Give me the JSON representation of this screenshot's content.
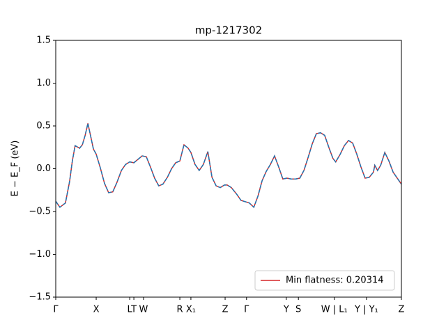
{
  "chart_data": {
    "type": "line",
    "title": "mp-1217302",
    "y_label": "E − E_F (eV)",
    "x": [
      0,
      0.012,
      0.028,
      0.04,
      0.048,
      0.056,
      0.069,
      0.077,
      0.085,
      0.093,
      0.101,
      0.109,
      0.117,
      0.129,
      0.141,
      0.153,
      0.165,
      0.177,
      0.19,
      0.202,
      0.214,
      0.226,
      0.238,
      0.25,
      0.262,
      0.274,
      0.286,
      0.298,
      0.31,
      0.323,
      0.335,
      0.347,
      0.359,
      0.371,
      0.383,
      0.391,
      0.403,
      0.415,
      0.427,
      0.44,
      0.452,
      0.464,
      0.476,
      0.488,
      0.496,
      0.508,
      0.524,
      0.536,
      0.552,
      0.56,
      0.573,
      0.585,
      0.597,
      0.609,
      0.621,
      0.633,
      0.645,
      0.657,
      0.669,
      0.681,
      0.694,
      0.706,
      0.718,
      0.73,
      0.742,
      0.754,
      0.766,
      0.778,
      0.79,
      0.802,
      0.81,
      0.823,
      0.835,
      0.847,
      0.859,
      0.871,
      0.883,
      0.895,
      0.907,
      0.919,
      0.923,
      0.931,
      0.94,
      0.952,
      0.964,
      0.976,
      0.988,
      1
    ],
    "series": [
      {
        "name": "Min flatness: 0.20314",
        "color": "#d62728",
        "linestyle": "solid",
        "values": [
          -0.38,
          -0.45,
          -0.4,
          -0.15,
          0.09,
          0.27,
          0.24,
          0.28,
          0.39,
          0.53,
          0.38,
          0.23,
          0.17,
          0.01,
          -0.17,
          -0.28,
          -0.27,
          -0.16,
          -0.02,
          0.05,
          0.08,
          0.07,
          0.11,
          0.15,
          0.14,
          0.02,
          -0.11,
          -0.2,
          -0.18,
          -0.1,
          0.0,
          0.07,
          0.09,
          0.28,
          0.24,
          0.19,
          0.05,
          -0.02,
          0.05,
          0.2,
          -0.1,
          -0.2,
          -0.22,
          -0.19,
          -0.19,
          -0.22,
          -0.3,
          -0.37,
          -0.39,
          -0.4,
          -0.45,
          -0.32,
          -0.14,
          -0.03,
          0.05,
          0.15,
          0.02,
          -0.12,
          -0.11,
          -0.12,
          -0.12,
          -0.11,
          -0.02,
          0.13,
          0.29,
          0.41,
          0.42,
          0.39,
          0.25,
          0.12,
          0.08,
          0.17,
          0.27,
          0.33,
          0.3,
          0.17,
          0.02,
          -0.11,
          -0.1,
          -0.04,
          0.04,
          -0.02,
          0.04,
          0.19,
          0.09,
          -0.04,
          -0.11,
          -0.18
        ]
      },
      {
        "color": "#1f77b4",
        "linestyle": "dashed",
        "values": [
          -0.38,
          -0.45,
          -0.4,
          -0.15,
          0.09,
          0.27,
          0.24,
          0.28,
          0.39,
          0.53,
          0.38,
          0.23,
          0.17,
          0.01,
          -0.17,
          -0.28,
          -0.27,
          -0.16,
          -0.02,
          0.05,
          0.08,
          0.07,
          0.11,
          0.15,
          0.14,
          0.02,
          -0.11,
          -0.2,
          -0.18,
          -0.1,
          0.0,
          0.07,
          0.09,
          0.28,
          0.24,
          0.19,
          0.05,
          -0.02,
          0.05,
          0.2,
          -0.1,
          -0.2,
          -0.22,
          -0.19,
          -0.19,
          -0.22,
          -0.3,
          -0.37,
          -0.39,
          -0.4,
          -0.45,
          -0.32,
          -0.14,
          -0.03,
          0.05,
          0.15,
          0.02,
          -0.12,
          -0.11,
          -0.12,
          -0.12,
          -0.11,
          -0.02,
          0.13,
          0.29,
          0.41,
          0.42,
          0.39,
          0.25,
          0.12,
          0.08,
          0.17,
          0.27,
          0.33,
          0.3,
          0.17,
          0.02,
          -0.11,
          -0.1,
          -0.04,
          0.04,
          -0.02,
          0.04,
          0.19,
          0.09,
          -0.04,
          -0.11,
          -0.18
        ]
      }
    ],
    "xlim": [
      0,
      1
    ],
    "xticks": [
      {
        "value": 0,
        "label": "Γ"
      },
      {
        "value": 0.117,
        "label": "X"
      },
      {
        "value": 0.214,
        "label": "L"
      },
      {
        "value": 0.226,
        "label": "T"
      },
      {
        "value": 0.254,
        "label": "W"
      },
      {
        "value": 0.359,
        "label": "R"
      },
      {
        "value": 0.391,
        "label": "X₁"
      },
      {
        "value": 0.49,
        "label": "Z"
      },
      {
        "value": 0.552,
        "label": "Γ"
      },
      {
        "value": 0.667,
        "label": "Y"
      },
      {
        "value": 0.702,
        "label": "S"
      },
      {
        "value": 0.806,
        "label": "W | L₁"
      },
      {
        "value": 0.899,
        "label": "Y | Y₁"
      },
      {
        "value": 1,
        "label": "Z"
      }
    ],
    "ylim": [
      -1.5,
      1.5
    ],
    "yticks": [
      {
        "value": -1.5,
        "label": "−1.5"
      },
      {
        "value": -1,
        "label": "−1.0"
      },
      {
        "value": -0.5,
        "label": "−0.5"
      },
      {
        "value": 0,
        "label": "0.0"
      },
      0.5,
      {
        "value": 1,
        "label": "1.0"
      },
      1.5
    ],
    "grid": false,
    "legend": "lower right"
  }
}
